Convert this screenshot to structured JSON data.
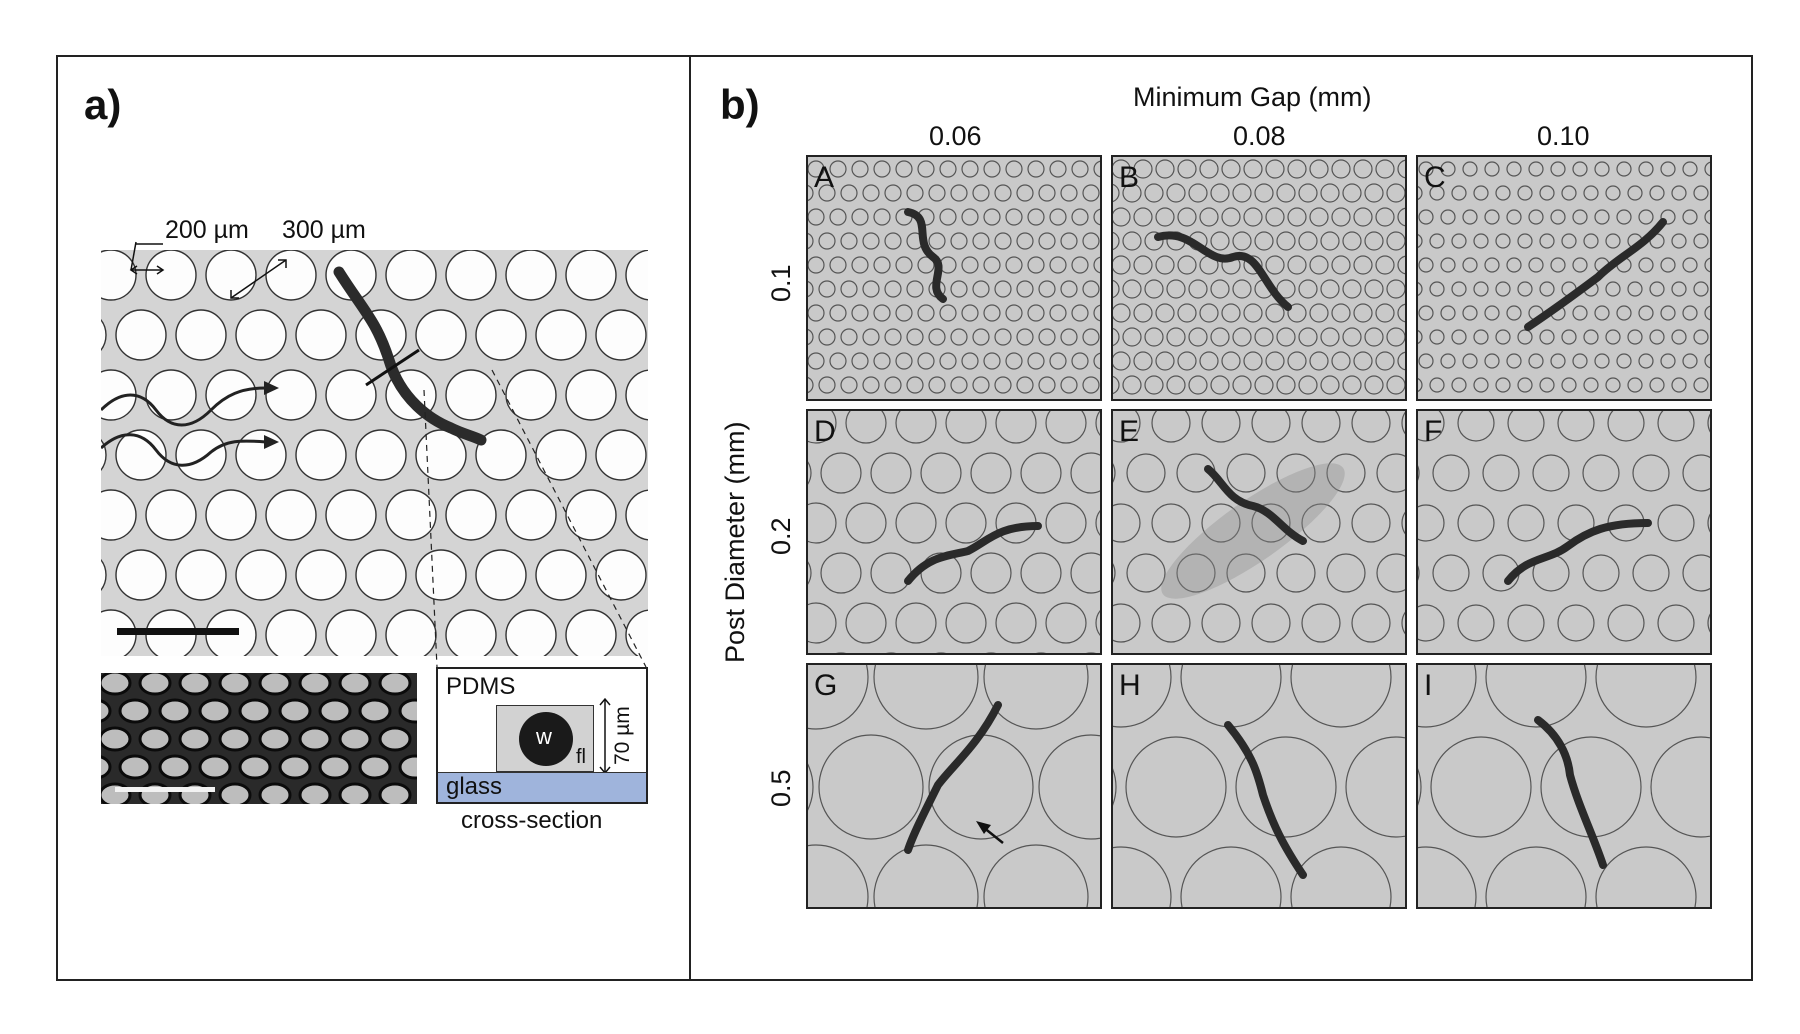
{
  "panel_a": {
    "label": "a)",
    "annot_200": "200 µm",
    "annot_300": "300 µm",
    "cross_section": {
      "pdms": "PDMS",
      "worm": "w",
      "fl": "fl",
      "height": "70 µm",
      "glass": "glass",
      "caption": "cross-section"
    }
  },
  "panel_b": {
    "label": "b)",
    "col_title": "Minimum Gap (mm)",
    "col_values": [
      "0.06",
      "0.08",
      "0.10"
    ],
    "row_title": "Post Diameter (mm)",
    "row_values": [
      "0.1",
      "0.2",
      "0.5"
    ],
    "tiles": [
      "A",
      "B",
      "C",
      "D",
      "E",
      "F",
      "G",
      "H",
      "I"
    ]
  },
  "colors": {
    "glass": "#9fb4dc",
    "frame": "#222222"
  }
}
